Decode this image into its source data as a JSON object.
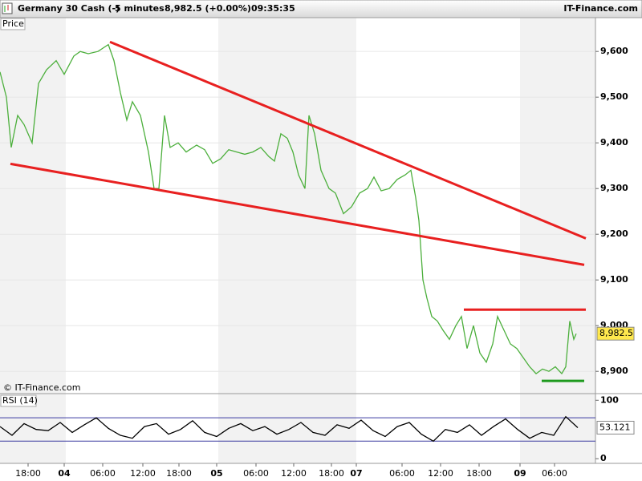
{
  "header": {
    "title": "Germany 30 Cash (-)",
    "interval": "5 minutes",
    "quote": "8,982.5 (+0.00%)",
    "time": "09:35:35",
    "brand": "IT-Finance.com"
  },
  "chart_data": [
    {
      "type": "line",
      "title": "Price",
      "watermark": "© IT-Finance.com",
      "color": "#4caf3c",
      "grid": true,
      "x": [
        0,
        8,
        14,
        22,
        30,
        40,
        48,
        58,
        70,
        80,
        92,
        100,
        110,
        122,
        135,
        142,
        150,
        158,
        165,
        175,
        185,
        192,
        198,
        205,
        212,
        222,
        232,
        245,
        255,
        265,
        275,
        285,
        295,
        305,
        315,
        325,
        335,
        342,
        350,
        358,
        365,
        372,
        380,
        385,
        392,
        400,
        410,
        418,
        428,
        438,
        448,
        458,
        466,
        475,
        485,
        495,
        505,
        512,
        518,
        522,
        527,
        532,
        538,
        545,
        552,
        560,
        568,
        575,
        582,
        590,
        598,
        606,
        614,
        620,
        628,
        636,
        644,
        652,
        660,
        668,
        676,
        684,
        692,
        700,
        705,
        710,
        715,
        718
      ],
      "values": [
        9555,
        9500,
        9390,
        9460,
        9440,
        9400,
        9530,
        9560,
        9580,
        9550,
        9590,
        9600,
        9595,
        9600,
        9615,
        9580,
        9510,
        9450,
        9490,
        9460,
        9380,
        9300,
        9300,
        9460,
        9390,
        9400,
        9380,
        9395,
        9385,
        9355,
        9365,
        9385,
        9380,
        9375,
        9380,
        9390,
        9370,
        9360,
        9420,
        9410,
        9380,
        9330,
        9300,
        9460,
        9420,
        9340,
        9300,
        9290,
        9245,
        9260,
        9290,
        9300,
        9325,
        9295,
        9300,
        9320,
        9330,
        9340,
        9280,
        9230,
        9100,
        9060,
        9020,
        9010,
        8990,
        8970,
        9000,
        9020,
        8950,
        9000,
        8940,
        8920,
        8960,
        9020,
        8990,
        8960,
        8950,
        8930,
        8910,
        8895,
        8905,
        8900,
        8910,
        8895,
        8910,
        9010,
        8970,
        8982.5
      ],
      "lines": [
        {
          "x": [
            137,
            730
          ],
          "values": [
            9621,
            9191
          ],
          "color": "#e82020"
        },
        {
          "x": [
            13,
            728
          ],
          "values": [
            9354,
            9133
          ],
          "color": "#e82020"
        },
        {
          "x": [
            578,
            730
          ],
          "values": [
            9035,
            9035
          ],
          "color": "#e82020"
        },
        {
          "x": [
            675,
            728
          ],
          "values": [
            8879,
            8879
          ],
          "color": "#1e9a1e"
        }
      ],
      "last_value": {
        "value": 8982.5,
        "label": "8,982.5"
      },
      "xlim": [
        0,
        742
      ],
      "ylim": [
        8853,
        9674
      ],
      "yticks": [
        {
          "value": 8900,
          "label": "8,900"
        },
        {
          "value": 9000,
          "label": "9,000"
        },
        {
          "value": 9100,
          "label": "9,100"
        },
        {
          "value": 9200,
          "label": "9,200"
        },
        {
          "value": 9300,
          "label": "9,300"
        },
        {
          "value": 9400,
          "label": "9,400"
        },
        {
          "value": 9500,
          "label": "9,500"
        },
        {
          "value": 9600,
          "label": "9,600"
        }
      ]
    },
    {
      "type": "line",
      "title": "RSI (14)",
      "color": "#000000",
      "levels": [
        30,
        70
      ],
      "level_color": "#3a3aa0",
      "x": [
        0,
        15,
        30,
        45,
        60,
        75,
        90,
        105,
        120,
        135,
        150,
        165,
        180,
        195,
        210,
        225,
        240,
        255,
        270,
        285,
        300,
        315,
        330,
        345,
        360,
        375,
        390,
        405,
        420,
        435,
        450,
        465,
        480,
        495,
        510,
        525,
        540,
        555,
        570,
        585,
        600,
        615,
        630,
        645,
        660,
        675,
        690,
        705,
        720
      ],
      "values": [
        55,
        40,
        60,
        50,
        48,
        62,
        45,
        58,
        70,
        52,
        40,
        35,
        55,
        60,
        42,
        50,
        65,
        45,
        38,
        52,
        60,
        48,
        55,
        42,
        50,
        62,
        45,
        40,
        58,
        52,
        66,
        48,
        38,
        55,
        62,
        42,
        30,
        50,
        45,
        58,
        40,
        55,
        68,
        50,
        35,
        45,
        40,
        72,
        53.121
      ],
      "last_value": 53.121,
      "xlim": [
        0,
        742
      ],
      "ylim": [
        -8,
        110
      ],
      "yticks": [
        0,
        100
      ],
      "xticks": [
        {
          "value": 35,
          "label": "18:00"
        },
        {
          "value": 80,
          "label": "04"
        },
        {
          "value": 128,
          "label": "06:00"
        },
        {
          "value": 178,
          "label": "12:00"
        },
        {
          "value": 223,
          "label": "18:00"
        },
        {
          "value": 270,
          "label": "05"
        },
        {
          "value": 319,
          "label": "06:00"
        },
        {
          "value": 366,
          "label": "12:00"
        },
        {
          "value": 413,
          "label": "18:00"
        },
        {
          "value": 444,
          "label": "07"
        },
        {
          "value": 501,
          "label": "06:00"
        },
        {
          "value": 549,
          "label": "12:00"
        },
        {
          "value": 597,
          "label": "18:00"
        },
        {
          "value": 648,
          "label": "09"
        },
        {
          "value": 691,
          "label": "06:00"
        }
      ]
    }
  ]
}
